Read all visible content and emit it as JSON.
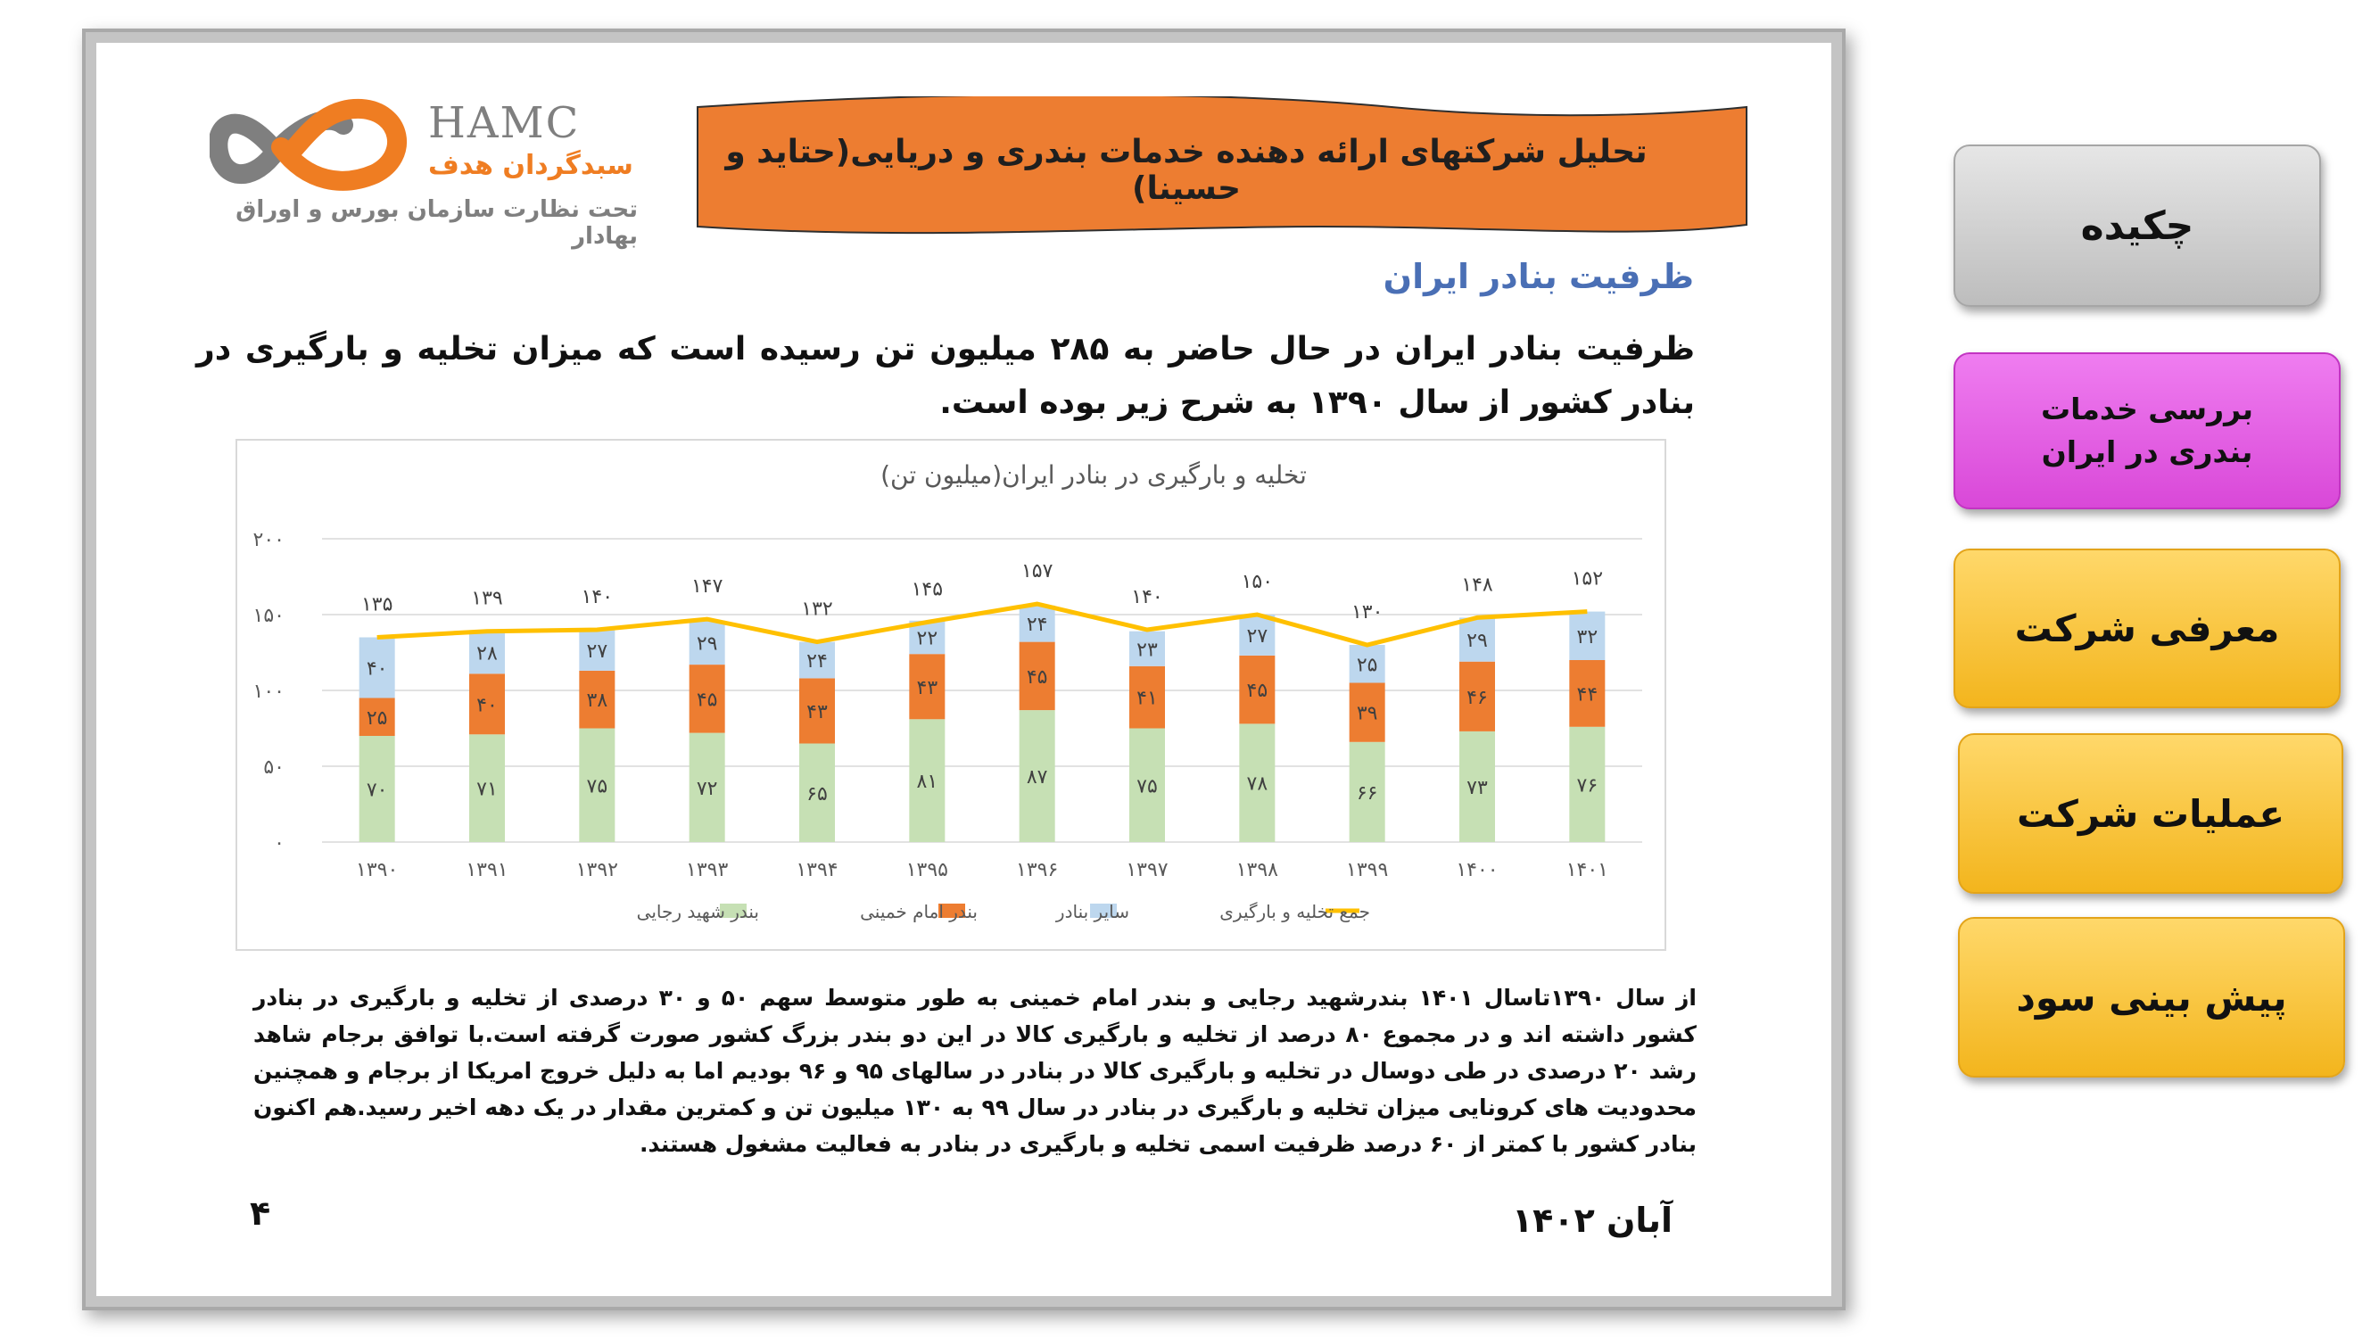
{
  "logo": {
    "name": "HAMC",
    "name_fa": "سبدگردان هدف",
    "subtitle": "تحت نظارت سازمان بورس و اوراق بهادار"
  },
  "banner": {
    "title": "تحلیل شرکتهای ارائه دهنده خدمات بندری و دریایی(حتاید و حسینا)"
  },
  "section_title": "ظرفیت بنادر ایران",
  "intro": "ظرفیت بنادر ایران در حال حاضر به ۲۸۵ میلیون تن رسیده است که میزان تخلیه و بارگیری در بنادر کشور از سال ۱۳۹۰ به شرح زیر بوده است.",
  "chart_data": {
    "type": "bar",
    "stacked": true,
    "title": "تخلیه و بارگیری در بنادر ایران(میلیون تن)",
    "categories": [
      "۱۳۹۰",
      "۱۳۹۱",
      "۱۳۹۲",
      "۱۳۹۳",
      "۱۳۹۴",
      "۱۳۹۵",
      "۱۳۹۶",
      "۱۳۹۷",
      "۱۳۹۸",
      "۱۳۹۹",
      "۱۴۰۰",
      "۱۴۰۱"
    ],
    "series": [
      {
        "name": "بندر شهید رجایی",
        "color": "#c6e0b4",
        "values": [
          70,
          71,
          75,
          72,
          65,
          81,
          87,
          75,
          78,
          66,
          73,
          76
        ],
        "labels": [
          "۷۰",
          "۷۱",
          "۷۵",
          "۷۲",
          "۶۵",
          "۸۱",
          "۸۷",
          "۷۵",
          "۷۸",
          "۶۶",
          "۷۳",
          "۷۶"
        ]
      },
      {
        "name": "بندر امام خمینی",
        "color": "#ed7d31",
        "values": [
          25,
          40,
          38,
          45,
          43,
          43,
          45,
          41,
          45,
          39,
          46,
          44
        ],
        "labels": [
          "۲۵",
          "۴۰",
          "۳۸",
          "۴۵",
          "۴۳",
          "۴۳",
          "۴۵",
          "۴۱",
          "۴۵",
          "۳۹",
          "۴۶",
          "۴۴"
        ]
      },
      {
        "name": "سایر بنادر",
        "color": "#bdd7ee",
        "values": [
          40,
          28,
          27,
          29,
          24,
          22,
          24,
          23,
          27,
          25,
          29,
          32
        ],
        "labels": [
          "۴۰",
          "۲۸",
          "۲۷",
          "۲۹",
          "۲۴",
          "۲۲",
          "۲۴",
          "۲۳",
          "۲۷",
          "۲۵",
          "۲۹",
          "۳۲"
        ]
      }
    ],
    "total": {
      "name": "جمع  تخلیه و بارگیری",
      "color": "#ffc000",
      "type": "line",
      "values": [
        135,
        139,
        140,
        147,
        132,
        145,
        157,
        140,
        150,
        130,
        148,
        152
      ],
      "labels": [
        "۱۳۵",
        "۱۳۹",
        "۱۴۰",
        "۱۴۷",
        "۱۳۲",
        "۱۴۵",
        "۱۵۷",
        "۱۴۰",
        "۱۵۰",
        "۱۳۰",
        "۱۴۸",
        "۱۵۲"
      ]
    },
    "ylim": [
      0,
      200
    ],
    "yticks": [
      0,
      50,
      100,
      150,
      200
    ],
    "ytick_labels": [
      "۰",
      "۵۰",
      "۱۰۰",
      "۱۵۰",
      "۲۰۰"
    ],
    "grid": true,
    "legend": "bottom"
  },
  "paragraph": "از سال ۱۳۹۰تاسال ۱۴۰۱ بندرشهید رجایی و بندر امام خمینی به طور متوسط سهم ۵۰ و ۳۰ درصدی از تخلیه و بارگیری در بنادر کشور داشته اند و در مجموع ۸۰ درصد از تخلیه و بارگیری کالا در این دو بندر بزرگ کشور صورت گرفته است.با توافق برجام شاهد رشد ۲۰ درصدی در طی دوسال در تخلیه و بارگیری کالا در بنادر در سالهای ۹۵ و ۹۶ بودیم اما به دلیل خروج امریکا از برجام و همچنین محدودیت های کرونایی میزان تخلیه و بارگیری در بنادر در سال ۹۹ به ۱۳۰ میلیون تن و کمترین مقدار در یک دهه اخیر رسید.هم اکنون بنادر کشور با کمتر از ۶۰ درصد ظرفیت اسمی تخلیه و بارگیری در بنادر به فعالیت مشغول هستند.",
  "footer": {
    "page_number": "۴",
    "date": "آبان ۱۴۰۲"
  },
  "nav": {
    "summary": "چکیده",
    "port_services": "بررسی خدمات بندری در ایران",
    "company_intro": "معرفی شرکت",
    "company_ops": "عملیات شرکت",
    "profit_forecast": "پیش بینی سود"
  },
  "colors": {
    "banner_fill": "#ed7d31",
    "section_title": "#4a6fb5",
    "nav_active": "#e05fe0",
    "nav_gold": "#f7c232",
    "nav_gray": "#d0d0d0"
  }
}
